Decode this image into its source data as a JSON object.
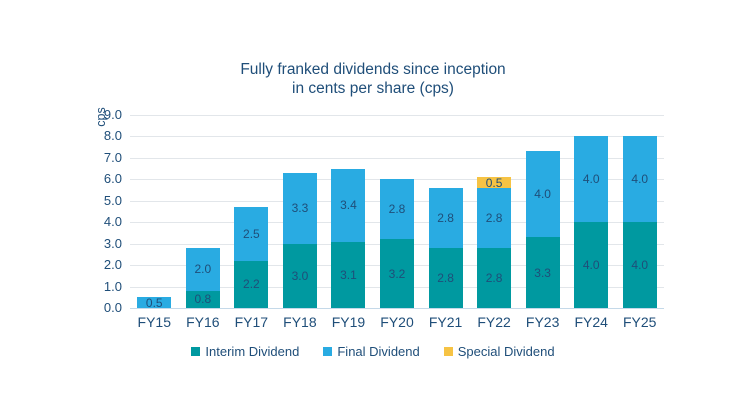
{
  "title": {
    "line1": "Fully franked dividends since inception",
    "line2": "in cents per share (cps)"
  },
  "colors": {
    "text_navy": "#1F4E79",
    "interim": "#0099A0",
    "final": "#29ABE2",
    "special": "#F6C344",
    "gridline": "#E2E6EA",
    "axis_line": "#C4D9E9"
  },
  "chart_data": {
    "type": "bar",
    "stacked": true,
    "title": "Fully franked dividends since inception in cents per share (cps)",
    "ylabel": "cps",
    "xlabel": "",
    "ylim": [
      0,
      9
    ],
    "ytick_step": 1.0,
    "ytick_labels": [
      "9.0",
      "8.0",
      "7.0",
      "6.0",
      "5.0",
      "4.0",
      "3.0",
      "2.0",
      "1.0",
      "0.0"
    ],
    "grid": true,
    "legend_position": "bottom",
    "bar_value_labels_decimals": 1,
    "categories": [
      "FY15",
      "FY16",
      "FY17",
      "FY18",
      "FY19",
      "FY20",
      "FY21",
      "FY22",
      "FY23",
      "FY24",
      "FY25"
    ],
    "series": [
      {
        "name": "Interim Dividend",
        "color": "#0099A0",
        "values": [
          0,
          0.8,
          2.2,
          3.0,
          3.1,
          3.2,
          2.8,
          2.8,
          3.3,
          4.0,
          4.0
        ]
      },
      {
        "name": "Final Dividend",
        "color": "#29ABE2",
        "values": [
          0.5,
          2.0,
          2.5,
          3.3,
          3.4,
          2.8,
          2.8,
          2.8,
          4.0,
          4.0,
          4.0
        ]
      },
      {
        "name": "Special Dividend",
        "color": "#F6C344",
        "values": [
          0,
          0,
          0,
          0,
          0,
          0,
          0,
          0.5,
          0,
          0,
          0
        ]
      }
    ],
    "totals": [
      0.5,
      2.8,
      4.7,
      6.3,
      6.5,
      6.0,
      5.6,
      6.1,
      7.3,
      8.0,
      8.0
    ]
  }
}
